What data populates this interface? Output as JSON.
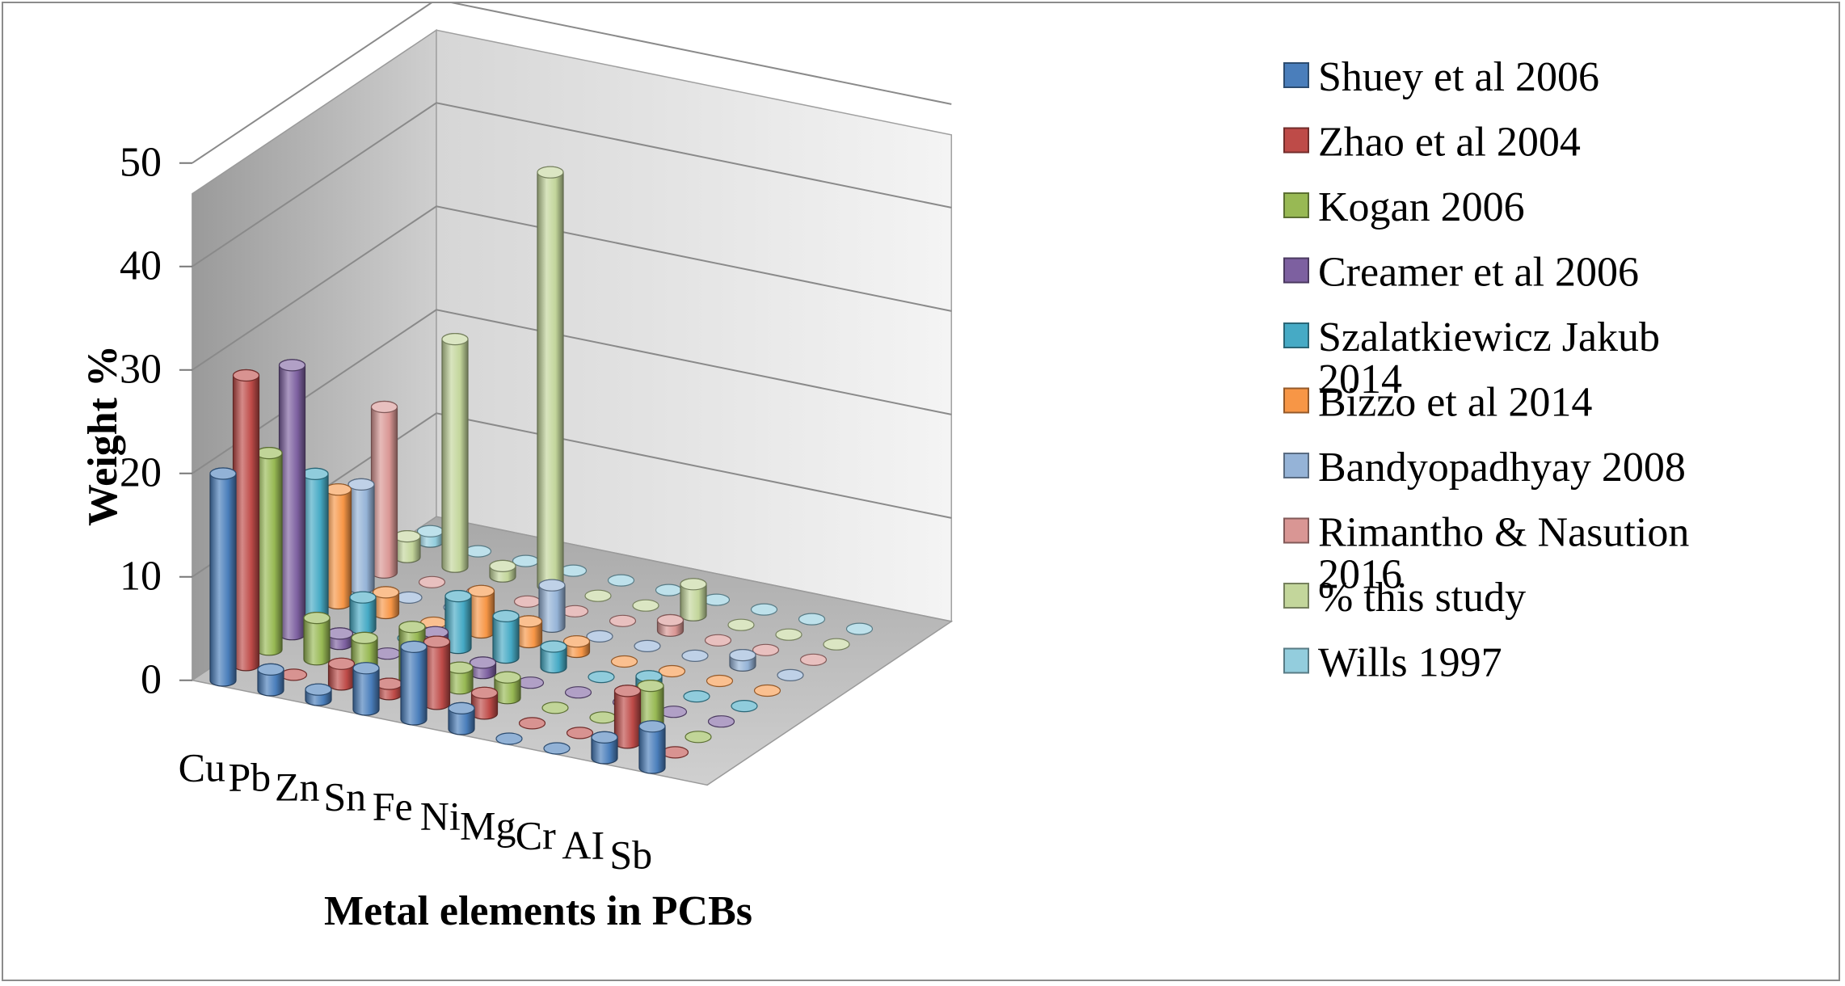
{
  "chart_data": {
    "type": "bar",
    "subtype": "3d-cylinder",
    "title": "",
    "xlabel": "Metal elements in PCBs",
    "ylabel": "Weight %",
    "ylim": [
      0,
      50
    ],
    "yticks": [
      0,
      10,
      20,
      30,
      40,
      50
    ],
    "grid": true,
    "legend_position": "right",
    "categories": [
      "Cu",
      "Pb",
      "Zn",
      "Sn",
      "Fe",
      "Ni",
      "Mg",
      "Cr",
      "AI",
      "Sb"
    ],
    "series": [
      {
        "name": "Shuey et al 2006",
        "color": "#4A7EBB",
        "values": [
          20,
          2,
          1,
          4,
          7,
          2,
          0,
          0,
          2,
          4
        ]
      },
      {
        "name": "Zhao et al 2004",
        "color": "#BE4B48",
        "values": [
          28,
          0,
          2,
          1,
          6,
          2,
          0,
          0,
          5,
          0
        ]
      },
      {
        "name": "Kogan 2006",
        "color": "#98B954",
        "values": [
          19,
          4,
          3,
          5,
          2,
          2,
          0,
          0,
          4,
          0
        ]
      },
      {
        "name": "Creamer et al 2006",
        "color": "#7D60A0",
        "values": [
          26,
          1,
          0,
          3,
          1,
          0,
          0,
          0,
          0,
          0
        ]
      },
      {
        "name": "Szalatkiewicz Jakub 2014",
        "color": "#46AAC5",
        "values": [
          14,
          3,
          0,
          5,
          4,
          2,
          0,
          1,
          0,
          0
        ]
      },
      {
        "name": "Bizzo et al 2014",
        "color": "#F79646",
        "values": [
          11,
          2,
          0,
          4,
          2,
          1,
          0,
          0,
          0,
          0
        ]
      },
      {
        "name": "Bandyopadhyay 2008",
        "color": "#95B3D7",
        "values": [
          10,
          0,
          0,
          0,
          4,
          0,
          0,
          0,
          1,
          0
        ]
      },
      {
        "name": "Rimantho & Nasution 2016",
        "color": "#D99694",
        "values": [
          16,
          0,
          0,
          0,
          0,
          0,
          1,
          0,
          0,
          0
        ]
      },
      {
        "name": "% this study",
        "color": "#C3D69B",
        "values": [
          2,
          22,
          1,
          40,
          0,
          0,
          3,
          0,
          0,
          0
        ]
      },
      {
        "name": "Wills 1997",
        "color": "#93CDDD",
        "values": [
          1,
          0,
          0,
          0,
          0,
          0,
          0,
          0,
          0,
          0
        ]
      }
    ]
  }
}
